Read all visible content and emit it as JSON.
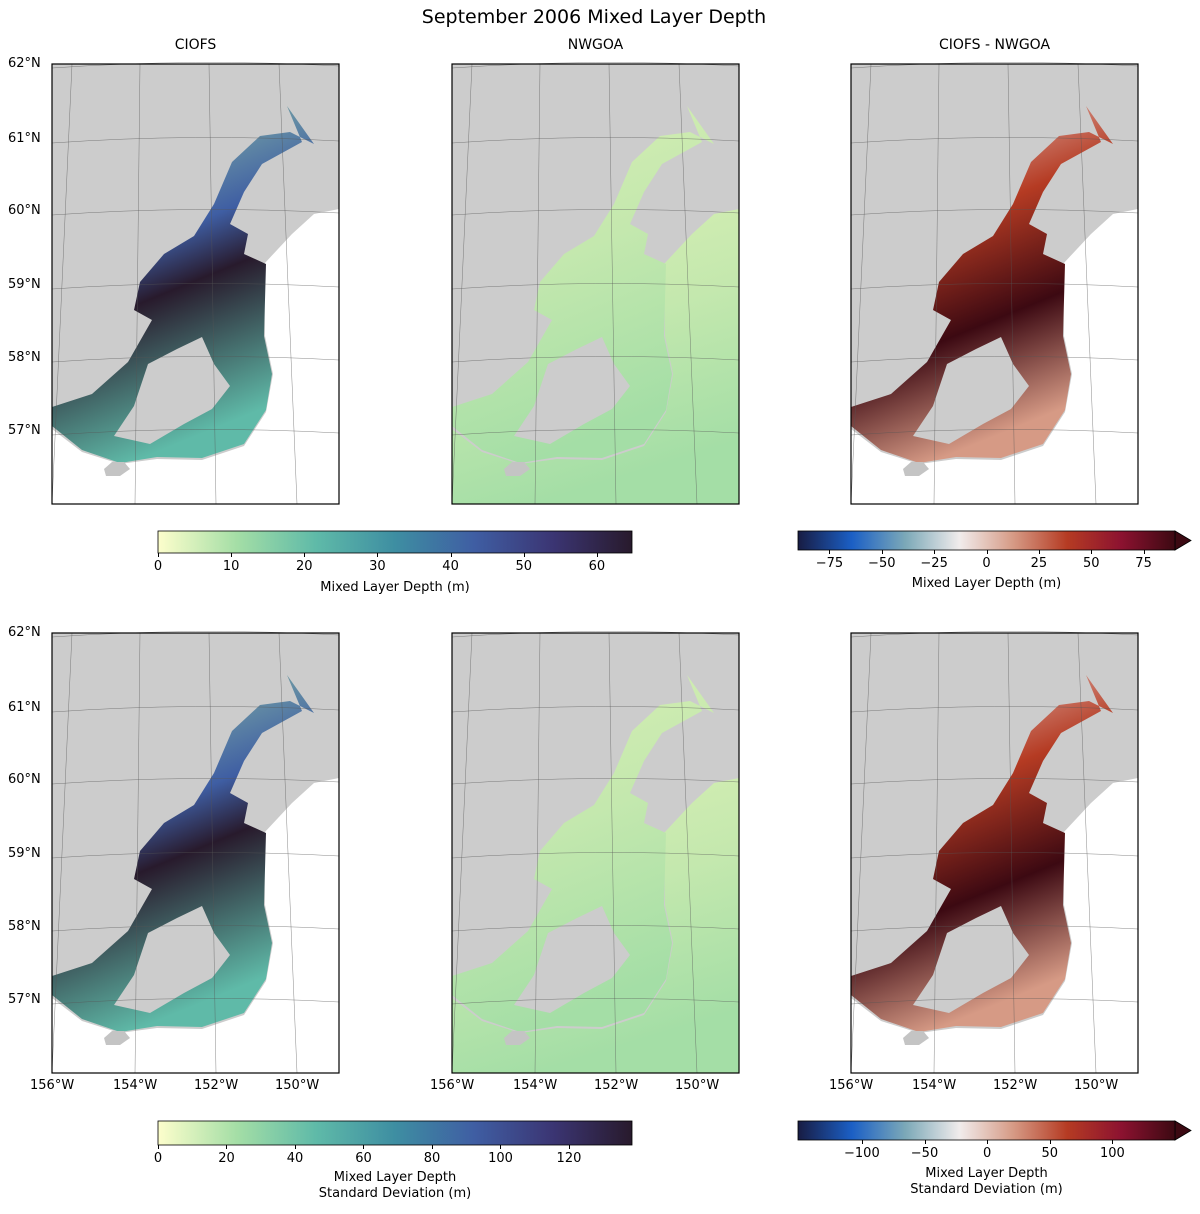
{
  "figure_title": "September 2006 Mixed Layer Depth",
  "columns": [
    "CIOFS",
    "NWGOA",
    "CIOFS - NWGOA"
  ],
  "lat_labels": [
    "62°N",
    "61°N",
    "60°N",
    "59°N",
    "58°N",
    "57°N"
  ],
  "lon_labels": [
    "156°W",
    "154°W",
    "152°W",
    "150°W"
  ],
  "colorbars": [
    {
      "name": "mean-colorbar",
      "cmap": "deep",
      "range": [
        0,
        64.8
      ],
      "ticks": [
        "0",
        "10",
        "20",
        "30",
        "40",
        "50",
        "60"
      ],
      "tick_values": [
        0,
        10,
        20,
        30,
        40,
        50,
        60
      ],
      "label_lines": [
        "Mixed Layer Depth (m)"
      ],
      "extend": "neither"
    },
    {
      "name": "mean-diff-colorbar",
      "cmap": "balance",
      "range": [
        -90,
        90
      ],
      "ticks": [
        "−75",
        "−50",
        "−25",
        "0",
        "25",
        "50",
        "75"
      ],
      "tick_values": [
        -75,
        -50,
        -25,
        0,
        25,
        50,
        75
      ],
      "label_lines": [
        "Mixed Layer Depth (m)"
      ],
      "extend": "max"
    },
    {
      "name": "std-colorbar",
      "cmap": "deep",
      "range": [
        0,
        138.4
      ],
      "ticks": [
        "0",
        "20",
        "40",
        "60",
        "80",
        "100",
        "120"
      ],
      "tick_values": [
        0,
        20,
        40,
        60,
        80,
        100,
        120
      ],
      "label_lines": [
        "Mixed Layer Depth",
        "Standard Deviation (m)"
      ],
      "extend": "neither"
    },
    {
      "name": "std-diff-colorbar",
      "cmap": "balance",
      "range": [
        -151,
        150
      ],
      "ticks": [
        "−100",
        "−50",
        "0",
        "50",
        "100"
      ],
      "tick_values": [
        -100,
        -50,
        0,
        50,
        100
      ],
      "label_lines": [
        "Mixed Layer Depth",
        "Standard Deviation (m)"
      ],
      "extend": "max"
    }
  ],
  "colors": {
    "land": "#cccccc",
    "deep": [
      "#fdfecc",
      "#a4dea6",
      "#5fbaa8",
      "#3e8ea2",
      "#3f5ea3",
      "#3b3573",
      "#281a2c"
    ],
    "balance": [
      "#181c43",
      "#1b5fc5",
      "#7ca9b8",
      "#f1ecec",
      "#d69a85",
      "#b53b23",
      "#8c1230",
      "#3c0912"
    ]
  }
}
